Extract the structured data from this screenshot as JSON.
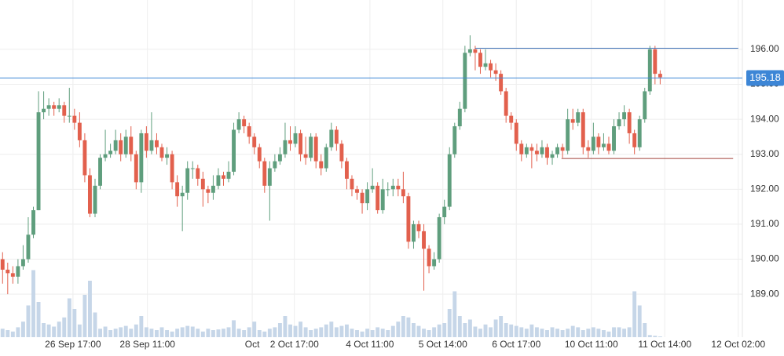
{
  "chart_data": {
    "type": "candlestick",
    "open": [
      190.0,
      189.7,
      189.6,
      189.5,
      189.8,
      190.0,
      190.7,
      191.4,
      194.2,
      194.3,
      194.4,
      194.3,
      194.4,
      194.1,
      194.1,
      193.9,
      193.4,
      192.4,
      191.3,
      192.1,
      192.9,
      193.0,
      193.1,
      193.4,
      193.0,
      193.5,
      193.0,
      192.2,
      193.6,
      193.1,
      193.4,
      193.2,
      192.9,
      193.0,
      192.2,
      191.8,
      191.9,
      192.6,
      192.6,
      192.3,
      192.0,
      191.9,
      192.1,
      192.4,
      192.3,
      192.5,
      193.7,
      194.0,
      193.8,
      193.5,
      193.2,
      192.8,
      192.1,
      192.6,
      192.8,
      193.0,
      193.4,
      193.3,
      193.6,
      193.0,
      192.9,
      193.5,
      192.8,
      192.6,
      193.2,
      193.7,
      193.3,
      192.8,
      192.3,
      192.0,
      191.9,
      191.6,
      192.0,
      192.1,
      191.4,
      192.0,
      192.0,
      192.1,
      192.0,
      191.8,
      190.5,
      191.0,
      190.8,
      190.3,
      189.8,
      190.0,
      191.2,
      191.5,
      193.0,
      193.8,
      194.3,
      195.9,
      196.0,
      195.9,
      195.5,
      195.6,
      195.4,
      195.3,
      194.8,
      194.1,
      193.9,
      193.3,
      193.0,
      193.2,
      193.1,
      193.0,
      193.2,
      192.9,
      193.0,
      193.2,
      193.1,
      194.0,
      193.9,
      194.2,
      193.2,
      193.1,
      193.5,
      193.2,
      193.3,
      193.1,
      193.8,
      194.0,
      194.2,
      193.6,
      193.2,
      194.0,
      194.8,
      196.0,
      195.3
    ],
    "high": [
      190.2,
      189.9,
      189.8,
      190.0,
      190.4,
      191.2,
      191.5,
      194.8,
      194.8,
      194.6,
      194.5,
      194.6,
      194.5,
      194.9,
      194.3,
      194.2,
      193.6,
      192.6,
      192.3,
      193.0,
      193.7,
      193.3,
      193.7,
      193.6,
      193.7,
      193.8,
      193.1,
      193.7,
      193.8,
      194.2,
      193.6,
      193.3,
      193.2,
      193.1,
      192.4,
      192.1,
      192.8,
      192.8,
      192.7,
      192.5,
      192.1,
      192.4,
      192.6,
      192.5,
      192.8,
      193.9,
      194.2,
      194.1,
      193.9,
      193.6,
      193.3,
      192.9,
      192.8,
      193.0,
      193.2,
      193.9,
      193.8,
      193.8,
      193.7,
      193.5,
      193.6,
      193.6,
      193.0,
      193.3,
      193.9,
      193.8,
      193.4,
      192.9,
      192.4,
      192.1,
      192.0,
      192.2,
      192.6,
      192.2,
      192.3,
      192.2,
      192.3,
      192.3,
      192.5,
      191.9,
      191.1,
      191.1,
      191.0,
      190.4,
      190.2,
      191.3,
      191.7,
      193.2,
      193.9,
      194.5,
      196.1,
      196.4,
      196.1,
      196.0,
      196.0,
      195.7,
      195.6,
      195.4,
      194.9,
      194.2,
      194.0,
      193.4,
      193.3,
      193.3,
      193.3,
      193.4,
      193.3,
      193.1,
      193.3,
      193.3,
      194.3,
      194.3,
      194.3,
      194.3,
      193.4,
      193.9,
      193.6,
      193.6,
      193.5,
      194.0,
      194.2,
      194.4,
      194.3,
      193.7,
      194.1,
      194.9,
      196.1,
      196.1,
      195.4
    ],
    "low": [
      189.3,
      189.0,
      189.3,
      189.3,
      189.7,
      189.9,
      190.6,
      191.4,
      194.0,
      194.1,
      194.1,
      194.2,
      193.9,
      193.9,
      193.7,
      193.2,
      192.2,
      191.2,
      191.2,
      192.0,
      192.8,
      192.9,
      193.0,
      192.8,
      192.9,
      192.8,
      192.0,
      191.9,
      192.9,
      193.0,
      193.0,
      192.8,
      192.7,
      192.0,
      191.5,
      190.8,
      191.7,
      192.3,
      192.1,
      191.5,
      191.6,
      191.7,
      192.0,
      192.1,
      192.2,
      192.4,
      193.6,
      193.6,
      193.3,
      193.0,
      192.6,
      191.9,
      191.1,
      192.5,
      192.7,
      192.9,
      193.1,
      193.2,
      192.8,
      192.7,
      192.8,
      192.6,
      192.4,
      192.5,
      193.1,
      193.1,
      192.6,
      192.0,
      191.8,
      191.7,
      191.3,
      191.4,
      191.9,
      191.3,
      191.3,
      191.8,
      191.8,
      191.8,
      191.6,
      190.3,
      190.3,
      190.6,
      189.1,
      189.6,
      189.7,
      189.9,
      191.0,
      191.4,
      192.9,
      193.7,
      194.2,
      195.8,
      195.4,
      195.3,
      195.4,
      195.2,
      195.1,
      194.7,
      193.9,
      193.7,
      193.1,
      192.8,
      192.9,
      192.6,
      192.8,
      192.9,
      192.7,
      192.7,
      192.9,
      192.9,
      193.0,
      193.7,
      193.8,
      193.0,
      192.9,
      193.0,
      193.0,
      193.1,
      193.0,
      193.0,
      193.7,
      193.8,
      193.3,
      193.0,
      193.1,
      193.9,
      194.7,
      195.0,
      195.0
    ],
    "close": [
      189.7,
      189.6,
      189.5,
      189.8,
      190.0,
      190.7,
      191.4,
      194.2,
      194.3,
      194.4,
      194.3,
      194.4,
      194.1,
      194.1,
      193.9,
      193.4,
      192.4,
      191.3,
      192.1,
      192.9,
      193.0,
      193.1,
      193.4,
      193.0,
      193.5,
      193.0,
      192.2,
      193.6,
      193.1,
      193.4,
      193.2,
      192.9,
      193.0,
      192.2,
      191.8,
      191.9,
      192.6,
      192.6,
      192.3,
      192.0,
      191.9,
      192.1,
      192.4,
      192.3,
      192.5,
      193.7,
      194.0,
      193.8,
      193.5,
      193.2,
      192.8,
      192.1,
      192.6,
      192.8,
      193.0,
      193.4,
      193.3,
      193.6,
      193.0,
      192.9,
      193.5,
      192.8,
      192.6,
      193.2,
      193.7,
      193.3,
      192.8,
      192.3,
      192.0,
      191.9,
      191.6,
      192.0,
      192.1,
      191.4,
      192.0,
      192.0,
      192.1,
      192.0,
      191.8,
      190.5,
      191.0,
      190.8,
      190.3,
      189.8,
      190.0,
      191.2,
      191.5,
      193.0,
      193.8,
      194.3,
      195.9,
      196.0,
      195.9,
      195.5,
      195.6,
      195.4,
      195.3,
      194.8,
      194.1,
      193.9,
      193.3,
      193.0,
      193.2,
      193.1,
      193.0,
      193.2,
      192.9,
      193.0,
      193.2,
      193.1,
      194.0,
      193.9,
      194.2,
      193.2,
      193.1,
      193.5,
      193.2,
      193.3,
      193.1,
      193.8,
      194.0,
      194.2,
      193.6,
      193.2,
      194.0,
      194.8,
      196.0,
      195.3,
      195.2
    ],
    "volume": [
      12,
      10,
      8,
      14,
      22,
      45,
      95,
      50,
      20,
      18,
      15,
      22,
      28,
      55,
      40,
      18,
      60,
      80,
      35,
      12,
      15,
      10,
      12,
      14,
      16,
      12,
      18,
      30,
      14,
      12,
      10,
      14,
      10,
      8,
      12,
      14,
      16,
      15,
      12,
      8,
      12,
      10,
      11,
      12,
      14,
      24,
      12,
      10,
      14,
      22,
      10,
      8,
      12,
      14,
      20,
      30,
      18,
      16,
      22,
      14,
      10,
      12,
      14,
      18,
      22,
      14,
      16,
      18,
      12,
      10,
      8,
      12,
      10,
      14,
      12,
      10,
      16,
      22,
      30,
      28,
      20,
      16,
      12,
      10,
      14,
      18,
      20,
      40,
      65,
      30,
      20,
      25,
      15,
      12,
      18,
      14,
      25,
      30,
      20,
      18,
      16,
      14,
      12,
      18,
      14,
      12,
      10,
      14,
      12,
      10,
      12,
      16,
      14,
      10,
      12,
      14,
      12,
      10,
      8,
      14,
      14,
      12,
      14,
      65,
      45,
      20,
      3,
      2,
      1
    ],
    "up_color": "#5f9e7d",
    "down_color": "#e2604d",
    "volume_color": "#c6d6e8",
    "xlim": [
      -0.5,
      144
    ],
    "xticks": [
      {
        "value": 13.7,
        "label": "26 Sep 17:00"
      },
      {
        "value": 28.2,
        "label": "28 Sep 11:00"
      },
      {
        "value": 48.6,
        "label": "Oct"
      },
      {
        "value": 56.8,
        "label": "2 Oct 17:00"
      },
      {
        "value": 71.5,
        "label": "4 Oct 11:00"
      },
      {
        "value": 85.7,
        "label": "5 Oct 14:00"
      },
      {
        "value": 100,
        "label": "6 Oct 17:00"
      },
      {
        "value": 114.6,
        "label": "10 Oct 11:00"
      },
      {
        "value": 128.9,
        "label": "11 Oct 14:00"
      },
      {
        "value": 143.2,
        "label": "12 Oct 02:00"
      }
    ],
    "ylim": [
      187.77,
      197.41
    ],
    "yticks": [
      {
        "value": 189,
        "label": "189.00"
      },
      {
        "value": 190,
        "label": "190.00"
      },
      {
        "value": 191,
        "label": "191.00"
      },
      {
        "value": 192,
        "label": "192.00"
      },
      {
        "value": 193,
        "label": "193.00"
      },
      {
        "value": 194,
        "label": "194.00"
      },
      {
        "value": 195,
        "label": "195.00"
      },
      {
        "value": 196,
        "label": "196.00"
      }
    ],
    "vlim": [
      0,
      100
    ],
    "grid": true,
    "lines": [
      {
        "value": 196.03,
        "from": 92,
        "to": 143.2,
        "color": "#3d6fb5"
      },
      {
        "value": 192.88,
        "from": 108.8,
        "to": 142.2,
        "color": "#a0403a"
      }
    ],
    "last_price": 195.18,
    "last_price_color": "#3d86d6"
  }
}
